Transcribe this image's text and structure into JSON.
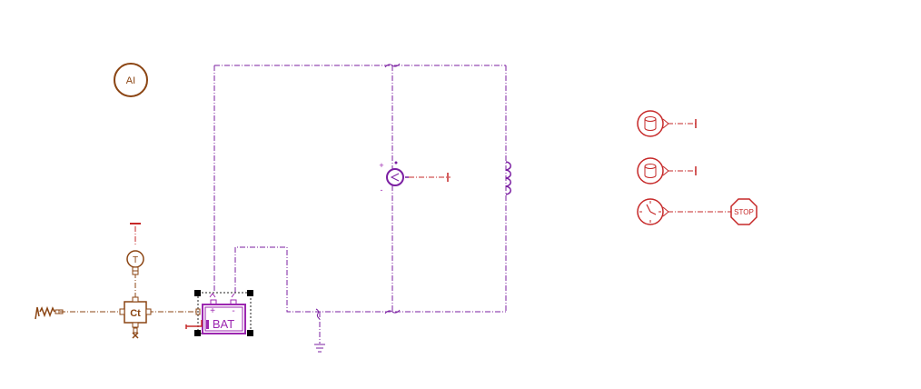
{
  "diagram": {
    "background": "#ffffff",
    "colors": {
      "electrical": "#7b1fa2",
      "signal": "#c62828",
      "thermal": "#8b4513"
    },
    "components": {
      "ai_block": {
        "label": "AI",
        "icon": "ai-block-icon"
      },
      "thermal_source": {
        "icon": "thermal-resistor-icon"
      },
      "thermal_sensor": {
        "label": "T",
        "icon": "temperature-sensor-icon"
      },
      "thermal_port": {
        "label": "Ct",
        "icon": "thermal-port-icon"
      },
      "battery": {
        "label": "BAT",
        "plus": "+",
        "minus": "-",
        "icon": "battery-icon"
      },
      "ground": {
        "icon": "ground-icon"
      },
      "voltage_sensor": {
        "plus": "+",
        "minus": "-",
        "icon": "voltage-sensor-icon"
      },
      "inductor": {
        "icon": "inductor-icon"
      },
      "data_store_1": {
        "icon": "database-icon"
      },
      "data_store_2": {
        "icon": "database-icon"
      },
      "clock": {
        "icon": "clock-icon"
      },
      "stop_block": {
        "label": "STOP",
        "icon": "stop-sign-icon"
      }
    }
  }
}
